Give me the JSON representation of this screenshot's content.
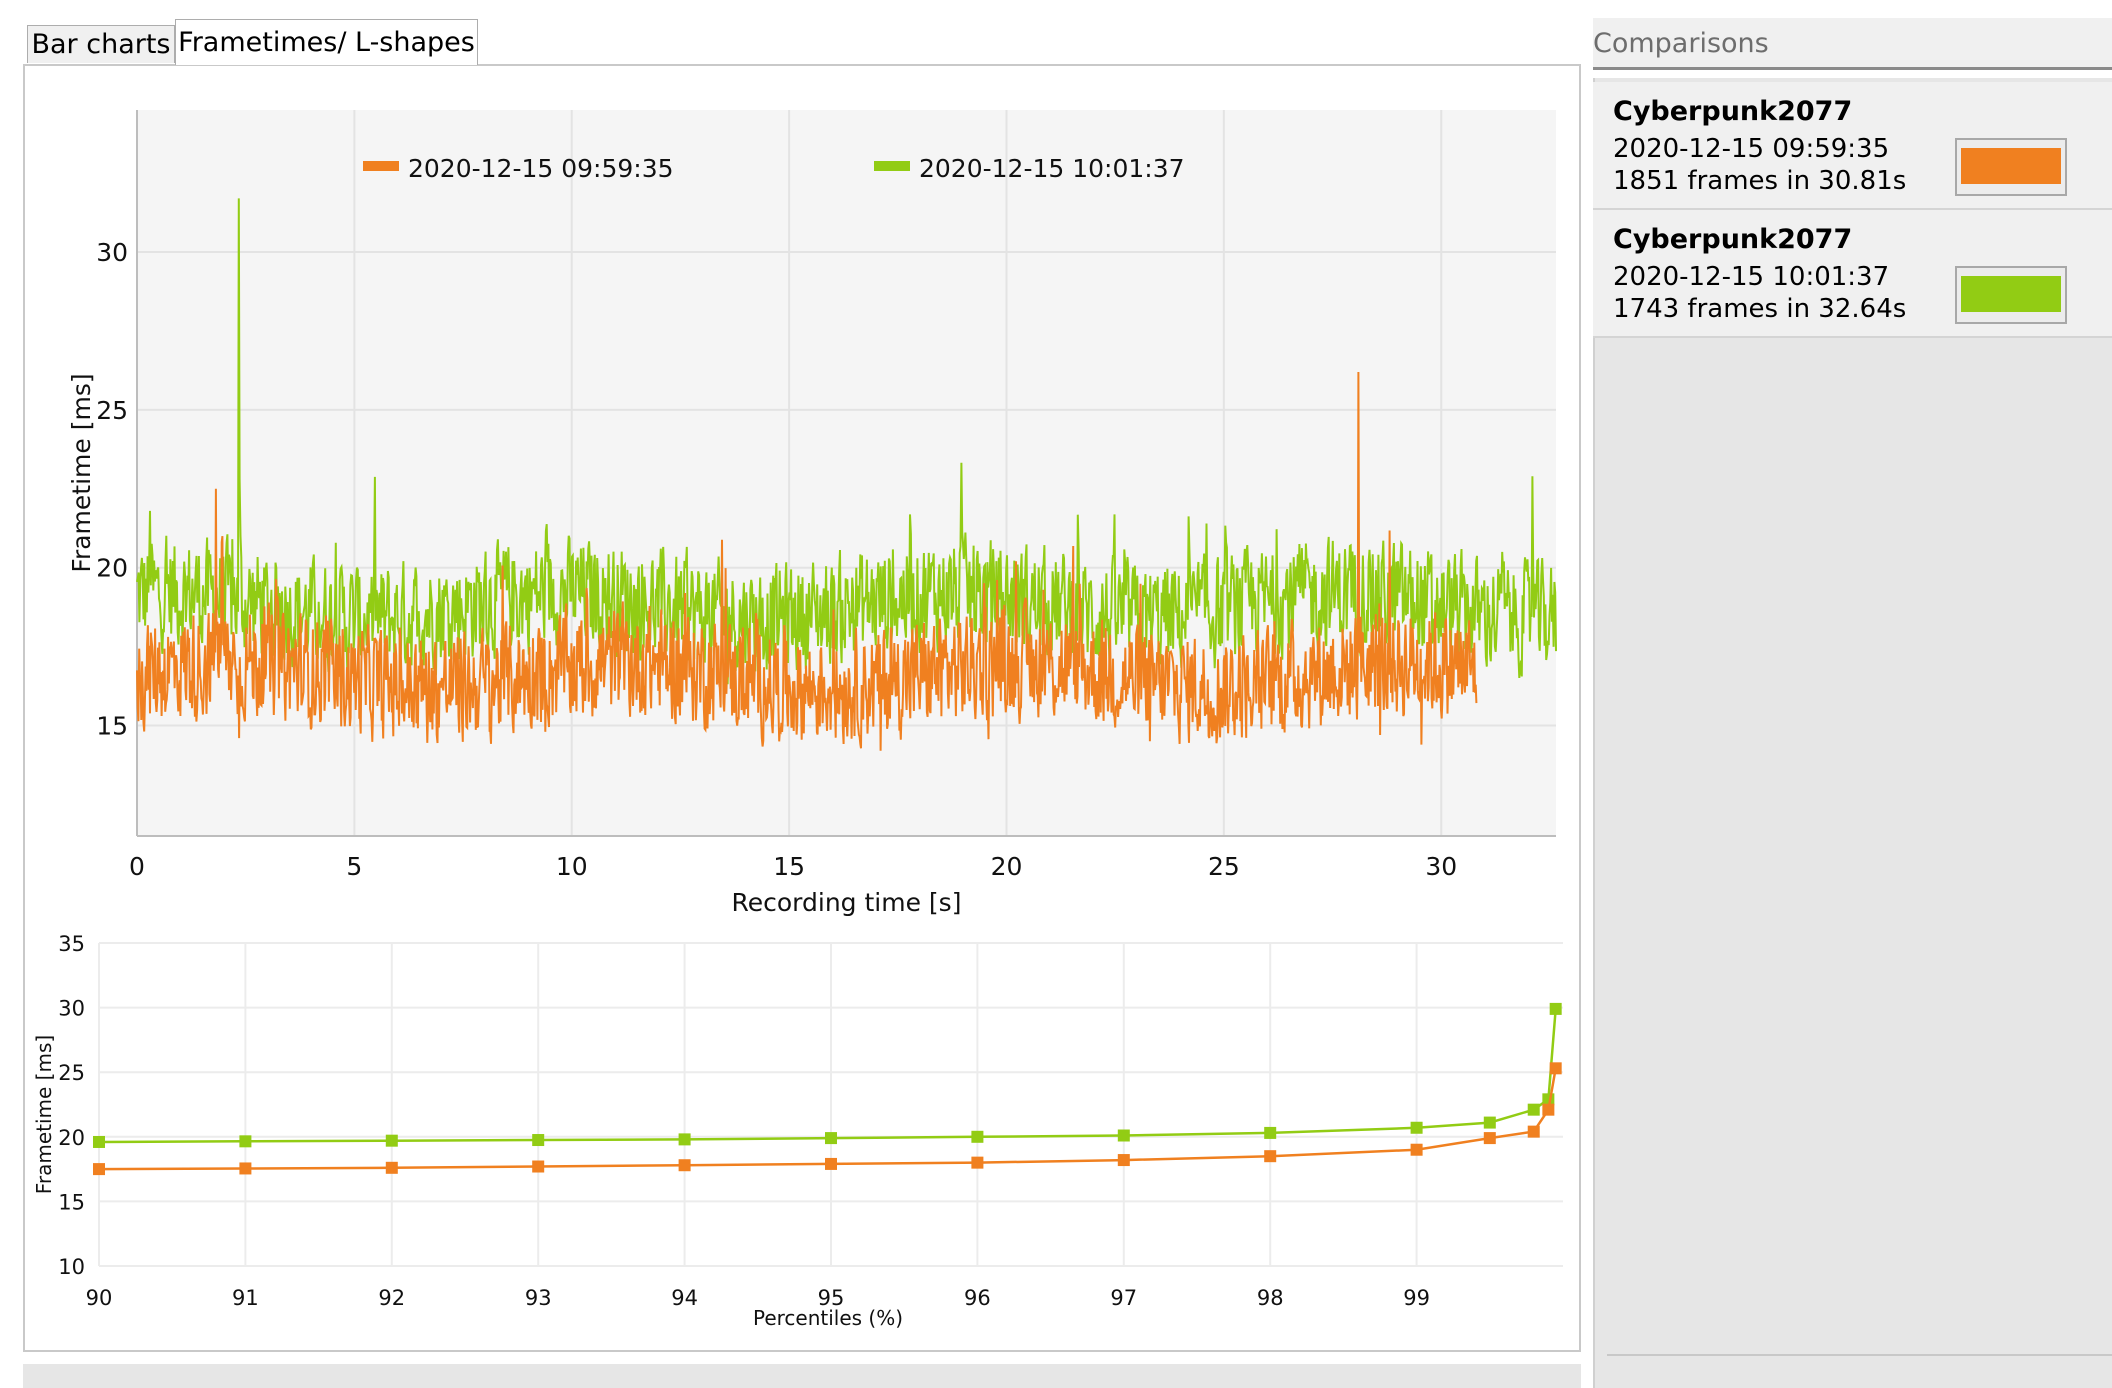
{
  "tabs": [
    {
      "label": "Bar charts",
      "active": false
    },
    {
      "label": "Frametimes/ L-shapes",
      "active": true
    }
  ],
  "colors": {
    "series_a": "#f08020",
    "series_b": "#92cc14",
    "grid": "#e3e3e3",
    "plot_bg": "#f5f5f5"
  },
  "sidebar": {
    "header": "Comparisons",
    "items": [
      {
        "title": "Cyberpunk2077",
        "date": "2020-12-15 09:59:35",
        "frames": "1851 frames in 30.81s",
        "color": "#f08020"
      },
      {
        "title": "Cyberpunk2077",
        "date": "2020-12-15 10:01:37",
        "frames": "1743 frames in 32.64s",
        "color": "#92cc14"
      }
    ]
  },
  "chart_data": [
    {
      "type": "line",
      "xlabel": "Recording time [s]",
      "ylabel": "Frametime [ms]",
      "xlim": [
        0,
        32.64
      ],
      "ylim": [
        11.5,
        34.5
      ],
      "xticks": [
        0,
        5,
        10,
        15,
        20,
        25,
        30
      ],
      "yticks": [
        15,
        20,
        25,
        30
      ],
      "grid": true,
      "legend_position": "top",
      "series": [
        {
          "name": "2020-12-15 09:59:35",
          "color": "#f08020",
          "duration": 30.81,
          "frames": 1851,
          "mean": 16.6,
          "spikes": [
            [
              1.82,
              22.5
            ],
            [
              1.95,
              20.8
            ],
            [
              2.35,
              14.6
            ],
            [
              9.4,
              14.8
            ],
            [
              17.1,
              14.2
            ],
            [
              23.3,
              14.5
            ],
            [
              28.1,
              26.2
            ],
            [
              28.6,
              14.7
            ]
          ]
        },
        {
          "name": "2020-12-15 10:01:37",
          "color": "#92cc14",
          "duration": 32.64,
          "frames": 1743,
          "mean": 18.8,
          "spikes": [
            [
              2.35,
              31.7
            ],
            [
              0.3,
              21.8
            ],
            [
              24.6,
              21.4
            ],
            [
              32.1,
              22.9
            ],
            [
              31.4,
              20.5
            ],
            [
              29.8,
              17.6
            ]
          ]
        }
      ]
    },
    {
      "type": "line",
      "xlabel": "Percentiles (%)",
      "ylabel": "Frametime [ms]",
      "xlim": [
        90,
        100
      ],
      "ylim": [
        10,
        35
      ],
      "xticks": [
        90,
        91,
        92,
        93,
        94,
        95,
        96,
        97,
        98,
        99
      ],
      "yticks": [
        10,
        15,
        20,
        25,
        30,
        35
      ],
      "grid": true,
      "series": [
        {
          "name": "2020-12-15 10:01:37",
          "color": "#92cc14",
          "x": [
            90,
            91,
            92,
            93,
            94,
            95,
            96,
            97,
            98,
            99,
            99.5,
            99.8,
            99.9,
            99.95
          ],
          "y": [
            19.6,
            19.65,
            19.7,
            19.75,
            19.8,
            19.9,
            20.0,
            20.1,
            20.3,
            20.7,
            21.1,
            22.1,
            22.9,
            29.9
          ]
        },
        {
          "name": "2020-12-15 09:59:35",
          "color": "#f08020",
          "x": [
            90,
            91,
            92,
            93,
            94,
            95,
            96,
            97,
            98,
            99,
            99.5,
            99.8,
            99.9,
            99.95
          ],
          "y": [
            17.5,
            17.55,
            17.6,
            17.7,
            17.8,
            17.9,
            18.0,
            18.2,
            18.5,
            19.0,
            19.9,
            20.4,
            22.1,
            25.3
          ]
        }
      ]
    }
  ]
}
